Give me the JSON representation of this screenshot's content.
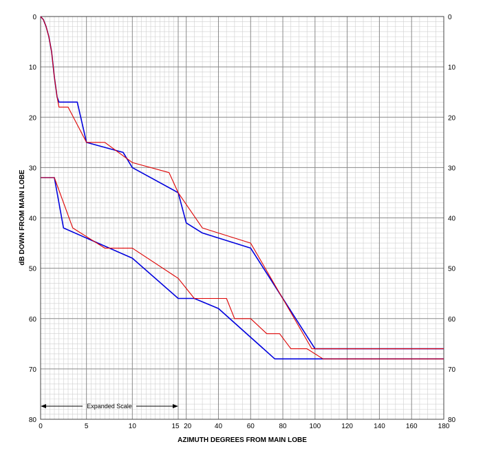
{
  "chart_data": {
    "type": "line",
    "title": "",
    "xlabel": "AZIMUTH DEGREES FROM MAIN LOBE",
    "ylabel": "dB DOWN FROM MAIN LOBE",
    "ylim": [
      0,
      80
    ],
    "y_inverted": true,
    "grid": true,
    "x_scale": "piecewise: 0-15 expanded, 15-180 linear",
    "x_ticks": [
      "0",
      "5",
      "10",
      "15",
      "20",
      "40",
      "60",
      "80",
      "100",
      "120",
      "140",
      "160",
      "180"
    ],
    "y_ticks": [
      "0",
      "10",
      "20",
      "30",
      "40",
      "50",
      "60",
      "70",
      "80"
    ],
    "y_ticks_right": [
      "0",
      "10",
      "20",
      "30",
      "40",
      "50",
      "60",
      "70",
      "80"
    ],
    "annotation": "Expanded Scale",
    "series": [
      {
        "color": "#0000dd",
        "points": [
          [
            0,
            0
          ],
          [
            0.3,
            0.6
          ],
          [
            0.6,
            2
          ],
          [
            0.9,
            4
          ],
          [
            1.2,
            7
          ],
          [
            1.5,
            12
          ],
          [
            1.8,
            16
          ],
          [
            2,
            17
          ],
          [
            4,
            17
          ],
          [
            5,
            25
          ],
          [
            9,
            27
          ],
          [
            10,
            30
          ],
          [
            15,
            35
          ],
          [
            20,
            41
          ],
          [
            30,
            43
          ],
          [
            60,
            46
          ],
          [
            100,
            66
          ],
          [
            180,
            66
          ]
        ]
      },
      {
        "color": "#dd0000",
        "points": [
          [
            0,
            0
          ],
          [
            0.3,
            0.6
          ],
          [
            0.6,
            2
          ],
          [
            0.9,
            4
          ],
          [
            1.2,
            7
          ],
          [
            1.5,
            12
          ],
          [
            1.8,
            16
          ],
          [
            2,
            18
          ],
          [
            3,
            18
          ],
          [
            5,
            25
          ],
          [
            7,
            25
          ],
          [
            10,
            29
          ],
          [
            14,
            31
          ],
          [
            15,
            35
          ],
          [
            30,
            42
          ],
          [
            60,
            45
          ],
          [
            98,
            66
          ],
          [
            180,
            66
          ]
        ]
      },
      {
        "color": "#0000dd",
        "points": [
          [
            0,
            32
          ],
          [
            1.5,
            32
          ],
          [
            2.5,
            42
          ],
          [
            5,
            44
          ],
          [
            10,
            48
          ],
          [
            15,
            56
          ],
          [
            25,
            56
          ],
          [
            40,
            58
          ],
          [
            75,
            68
          ],
          [
            180,
            68
          ]
        ]
      },
      {
        "color": "#dd0000",
        "points": [
          [
            0,
            32
          ],
          [
            1.5,
            32
          ],
          [
            3.5,
            42
          ],
          [
            7,
            46
          ],
          [
            10,
            46
          ],
          [
            15,
            52
          ],
          [
            20,
            54
          ],
          [
            25,
            56
          ],
          [
            45,
            56
          ],
          [
            50,
            60
          ],
          [
            60,
            60
          ],
          [
            70,
            63
          ],
          [
            78,
            63
          ],
          [
            85,
            66
          ],
          [
            95,
            66
          ],
          [
            105,
            68
          ],
          [
            180,
            68
          ]
        ]
      }
    ]
  }
}
